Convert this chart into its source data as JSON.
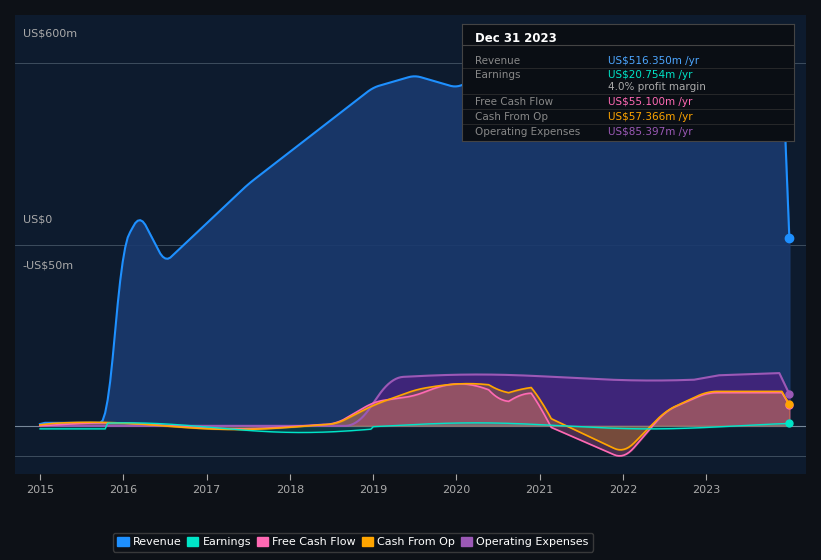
{
  "bg_color": "#0d1117",
  "plot_bg_color": "#0d1b2e",
  "title": "Dec 31 2023",
  "info_box": {
    "rows": [
      {
        "label": "Revenue",
        "value": "US$516.350m /yr",
        "value_color": "#4da6ff"
      },
      {
        "label": "Earnings",
        "value": "US$20.754m /yr",
        "value_color": "#00e5c8"
      },
      {
        "label": "",
        "value": "4.0% profit margin",
        "value_color": "#aaaaaa"
      },
      {
        "label": "Free Cash Flow",
        "value": "US$55.100m /yr",
        "value_color": "#ff69b4"
      },
      {
        "label": "Cash From Op",
        "value": "US$57.366m /yr",
        "value_color": "#ffa500"
      },
      {
        "label": "Operating Expenses",
        "value": "US$85.397m /yr",
        "value_color": "#9b59b6"
      }
    ]
  },
  "ylabel_600": "US$600m",
  "ylabel_0": "US$0",
  "ylabel_neg50": "-US$50m",
  "xlabel_ticks": [
    2015,
    2016,
    2017,
    2018,
    2019,
    2020,
    2021,
    2022,
    2023
  ],
  "series": {
    "revenue": {
      "color": "#1e90ff",
      "fill_color": "#1a3a6e",
      "label": "Revenue"
    },
    "earnings": {
      "color": "#00e5c8",
      "label": "Earnings"
    },
    "free_cash_flow": {
      "color": "#ff69b4",
      "label": "Free Cash Flow"
    },
    "cash_from_op": {
      "color": "#ffa500",
      "label": "Cash From Op"
    },
    "operating_expenses": {
      "color": "#9b59b6",
      "fill_color": "#4b2080",
      "label": "Operating Expenses"
    }
  },
  "legend": {
    "labels": [
      "Revenue",
      "Earnings",
      "Free Cash Flow",
      "Cash From Op",
      "Operating Expenses"
    ],
    "colors": [
      "#1e90ff",
      "#00e5c8",
      "#ff69b4",
      "#ffa500",
      "#9b59b6"
    ]
  }
}
